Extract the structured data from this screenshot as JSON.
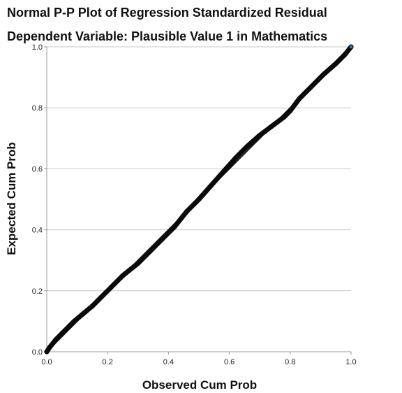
{
  "chart_data": {
    "type": "line",
    "title": "Normal P-P Plot of Regression Standardized Residual",
    "subtitle": "Dependent Variable: Plausible Value 1 in Mathematics",
    "xlabel": "Observed Cum Prob",
    "ylabel": "Expected Cum Prob",
    "xlim": [
      0.0,
      1.0
    ],
    "ylim": [
      0.0,
      1.0
    ],
    "x_ticks": [
      "0.0",
      "0.2",
      "0.4",
      "0.6",
      "0.8",
      "1.0"
    ],
    "y_ticks": [
      "0.0",
      "0.2",
      "0.4",
      "0.6",
      "0.8",
      "1.0"
    ],
    "grid": "horizontal",
    "reference_line": {
      "x": [
        0.0,
        1.0
      ],
      "y": [
        0.0,
        1.0
      ]
    },
    "series": [
      {
        "x": [
          0.0,
          0.01,
          0.03,
          0.06,
          0.09,
          0.12,
          0.15,
          0.18,
          0.21,
          0.25,
          0.3,
          0.34,
          0.38,
          0.42,
          0.46,
          0.5,
          0.54,
          0.58,
          0.62,
          0.66,
          0.7,
          0.74,
          0.78,
          0.8,
          0.83,
          0.87,
          0.91,
          0.95,
          0.98,
          1.0
        ],
        "y": [
          0.0,
          0.015,
          0.04,
          0.07,
          0.1,
          0.125,
          0.15,
          0.18,
          0.21,
          0.25,
          0.29,
          0.33,
          0.37,
          0.41,
          0.46,
          0.5,
          0.545,
          0.59,
          0.635,
          0.675,
          0.71,
          0.74,
          0.77,
          0.79,
          0.83,
          0.87,
          0.91,
          0.945,
          0.975,
          1.0
        ]
      }
    ],
    "colors": {
      "reference": "#1a1a1a",
      "series": "#0a0a0a",
      "gridline": "#c8c8c8",
      "axis": "#9a9a9a",
      "end_marker": "#3f78c6"
    }
  }
}
